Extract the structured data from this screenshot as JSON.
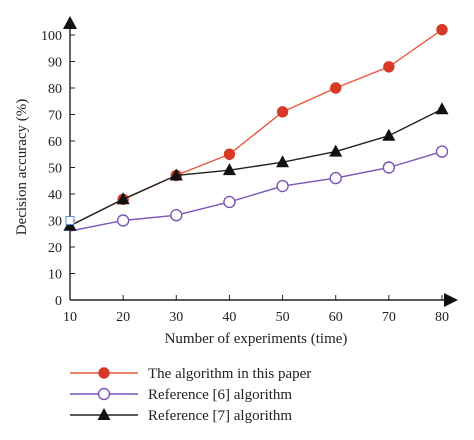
{
  "chart_data": {
    "type": "line",
    "title": "",
    "xlabel": "Number of experiments (time)",
    "ylabel": "Decision accuracy (%)",
    "x": [
      10,
      20,
      30,
      40,
      50,
      60,
      70,
      80
    ],
    "xlim": [
      10,
      80
    ],
    "ylim": [
      0,
      100
    ],
    "x_ticks": [
      "10",
      "20",
      "30",
      "40",
      "50",
      "60",
      "70",
      "80"
    ],
    "y_ticks": [
      "0",
      "10",
      "20",
      "30",
      "40",
      "50",
      "60",
      "70",
      "80",
      "90",
      "100"
    ],
    "grid": false,
    "legend_position": "bottom-left",
    "series": [
      {
        "name": "The algorithm in this paper",
        "color": "#e8593a",
        "marker": "filled-circle",
        "marker_color": "#d63a26",
        "values": [
          28,
          38,
          47,
          55,
          71,
          80,
          88,
          102
        ]
      },
      {
        "name": "Reference [6] algorithm",
        "color": "#7b55b8",
        "marker": "open-circle",
        "marker_color": "#7b55b8",
        "values": [
          26,
          30,
          32,
          37,
          43,
          46,
          50,
          56
        ]
      },
      {
        "name": "Reference [7] algorithm",
        "color": "#222222",
        "marker": "filled-triangle",
        "marker_color": "#111111",
        "values": [
          28,
          38,
          47,
          49,
          52,
          56,
          62,
          72
        ]
      }
    ]
  }
}
